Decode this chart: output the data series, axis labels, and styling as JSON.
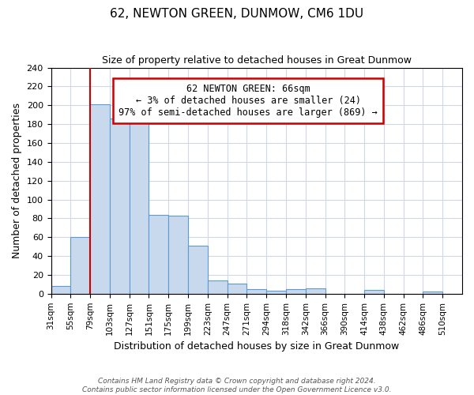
{
  "title": "62, NEWTON GREEN, DUNMOW, CM6 1DU",
  "subtitle": "Size of property relative to detached houses in Great Dunmow",
  "xlabel": "Distribution of detached houses by size in Great Dunmow",
  "ylabel": "Number of detached properties",
  "bin_labels": [
    "31sqm",
    "55sqm",
    "79sqm",
    "103sqm",
    "127sqm",
    "151sqm",
    "175sqm",
    "199sqm",
    "223sqm",
    "247sqm",
    "271sqm",
    "294sqm",
    "318sqm",
    "342sqm",
    "366sqm",
    "390sqm",
    "414sqm",
    "438sqm",
    "462sqm",
    "486sqm",
    "510sqm"
  ],
  "bar_heights": [
    8,
    60,
    201,
    186,
    193,
    84,
    83,
    51,
    14,
    11,
    5,
    3,
    5,
    6,
    0,
    0,
    4,
    0,
    0,
    2,
    0
  ],
  "bar_color": "#c8d9ed",
  "bar_edge_color": "#5b9bd5",
  "highlight_color": "#cc0000",
  "ylim": [
    0,
    240
  ],
  "yticks": [
    0,
    20,
    40,
    60,
    80,
    100,
    120,
    140,
    160,
    180,
    200,
    220,
    240
  ],
  "annotation_title": "62 NEWTON GREEN: 66sqm",
  "annotation_line1": "← 3% of detached houses are smaller (24)",
  "annotation_line2": "97% of semi-detached houses are larger (869) →",
  "annotation_box_color": "#ffffff",
  "annotation_box_edge": "#cc0000",
  "footer_line1": "Contains HM Land Registry data © Crown copyright and database right 2024.",
  "footer_line2": "Contains public sector information licensed under the Open Government Licence v3.0."
}
